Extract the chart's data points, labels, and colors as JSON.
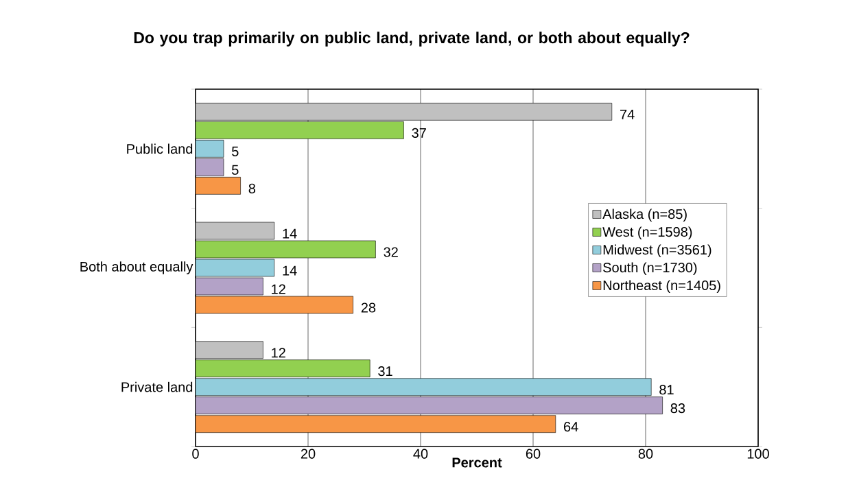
{
  "chart_data": {
    "type": "bar",
    "orientation": "horizontal",
    "title": "Do you trap primarily on public land, private land, or both about equally?",
    "xlabel": "Percent",
    "categories": [
      "Public land",
      "Both about equally",
      "Private land"
    ],
    "series": [
      {
        "name": "Alaska (n=85)",
        "color": "#c0c0c0",
        "values": [
          74,
          14,
          12
        ]
      },
      {
        "name": "West (n=1598)",
        "color": "#92d050",
        "values": [
          37,
          32,
          31
        ]
      },
      {
        "name": "Midwest (n=3561)",
        "color": "#92cddc",
        "values": [
          5,
          14,
          81
        ]
      },
      {
        "name": "South (n=1730)",
        "color": "#b3a2c7",
        "values": [
          5,
          12,
          83
        ]
      },
      {
        "name": "Northeast (n=1405)",
        "color": "#f79646",
        "values": [
          8,
          28,
          64
        ]
      }
    ],
    "xlim": [
      0,
      100
    ],
    "xticks": [
      0,
      20,
      40,
      60,
      80,
      100
    ],
    "grid": "x",
    "legend": "right",
    "data_labels": true
  }
}
